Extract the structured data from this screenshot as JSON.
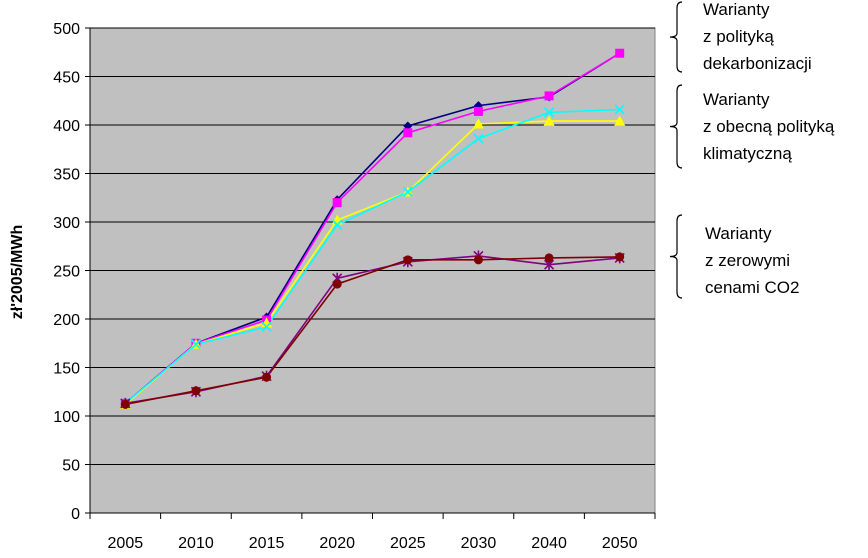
{
  "chart_data": {
    "type": "line",
    "title": "",
    "xlabel": "",
    "ylabel": "zł'2005/MWh",
    "categories": [
      "2005",
      "2010",
      "2015",
      "2020",
      "2025",
      "2030",
      "2040",
      "2050"
    ],
    "ylim": [
      0,
      500
    ],
    "yticks": [
      0,
      50,
      100,
      150,
      200,
      250,
      300,
      350,
      400,
      450,
      500
    ],
    "grid": true,
    "plot_background": "#c0c0c0",
    "series": [
      {
        "color": "#000080",
        "marker": "diamond",
        "values": [
          113,
          175,
          202,
          323,
          399,
          420,
          429,
          474
        ]
      },
      {
        "color": "#ff00ff",
        "marker": "square",
        "values": [
          113,
          175,
          199,
          320,
          392,
          414,
          430,
          474
        ]
      },
      {
        "color": "#ffff00",
        "marker": "triangle",
        "values": [
          112,
          174,
          196,
          302,
          331,
          401,
          404,
          404
        ]
      },
      {
        "color": "#00ffff",
        "marker": "x",
        "values": [
          113,
          174,
          192,
          297,
          331,
          386,
          413,
          416
        ]
      },
      {
        "color": "#800080",
        "marker": "star",
        "values": [
          113,
          125,
          141,
          242,
          259,
          265,
          256,
          263
        ]
      },
      {
        "color": "#800000",
        "marker": "circle",
        "values": [
          112,
          126,
          140,
          236,
          261,
          261,
          263,
          264
        ]
      }
    ],
    "annotations": [
      {
        "id": "decarb",
        "lines": [
          "Warianty",
          "z polityką",
          "dekarbonizacji"
        ]
      },
      {
        "id": "current",
        "lines": [
          "Warianty",
          "z obecną polityką",
          "klimatyczną"
        ]
      },
      {
        "id": "zero",
        "lines": [
          "Warianty",
          "z zerowymi",
          "cenami CO2"
        ]
      }
    ]
  }
}
